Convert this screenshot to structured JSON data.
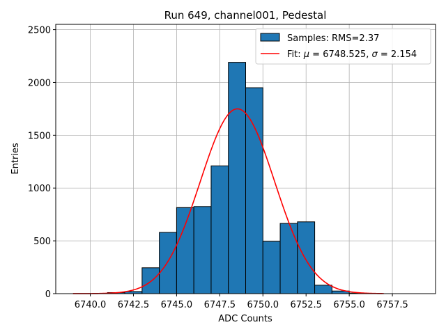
{
  "chart_data": {
    "type": "bar",
    "title": "Run 649, channel001, Pedestal",
    "xlabel": "ADC Counts",
    "ylabel": "Entries",
    "xlim": [
      6738,
      6760
    ],
    "ylim": [
      0,
      2550
    ],
    "x_ticks": [
      6740.0,
      6742.5,
      6745.0,
      6747.5,
      6750.0,
      6752.5,
      6755.0,
      6757.5
    ],
    "x_tick_labels": [
      "6740.0",
      "6742.5",
      "6745.0",
      "6747.5",
      "6750.0",
      "6752.5",
      "6755.0",
      "6757.5"
    ],
    "y_ticks": [
      0,
      500,
      1000,
      1500,
      2000,
      2500
    ],
    "y_tick_labels": [
      "0",
      "500",
      "1000",
      "1500",
      "2000",
      "2500"
    ],
    "grid": true,
    "legend_position": "top-right",
    "histogram": {
      "name": "Samples: RMS=2.37",
      "color": "#1f77b4",
      "edge_color": "#000000",
      "bins": [
        {
          "x0": 6741.0,
          "x1": 6742.0,
          "count": 10
        },
        {
          "x0": 6742.0,
          "x1": 6743.0,
          "count": 20
        },
        {
          "x0": 6743.0,
          "x1": 6744.0,
          "count": 245
        },
        {
          "x0": 6744.0,
          "x1": 6745.0,
          "count": 580
        },
        {
          "x0": 6745.0,
          "x1": 6746.0,
          "count": 815
        },
        {
          "x0": 6746.0,
          "x1": 6747.0,
          "count": 825
        },
        {
          "x0": 6747.0,
          "x1": 6748.0,
          "count": 1210
        },
        {
          "x0": 6748.0,
          "x1": 6749.0,
          "count": 2190
        },
        {
          "x0": 6749.0,
          "x1": 6750.0,
          "count": 1950
        },
        {
          "x0": 6750.0,
          "x1": 6751.0,
          "count": 495
        },
        {
          "x0": 6751.0,
          "x1": 6752.0,
          "count": 665
        },
        {
          "x0": 6752.0,
          "x1": 6753.0,
          "count": 680
        },
        {
          "x0": 6753.0,
          "x1": 6754.0,
          "count": 80
        },
        {
          "x0": 6754.0,
          "x1": 6755.0,
          "count": 25
        },
        {
          "x0": 6755.0,
          "x1": 6756.0,
          "count": 5
        }
      ]
    },
    "fit": {
      "name": "Fit: μ = 6748.525, σ = 2.154",
      "label_prefix": "Fit: ",
      "mu_symbol": "μ",
      "mu_text": " = 6748.525, ",
      "sigma_symbol": "σ",
      "sigma_text": " = 2.154",
      "color": "#ff0000",
      "mu": 6748.525,
      "sigma": 2.154,
      "amplitude": 1750,
      "x_range": [
        6739,
        6757
      ]
    }
  }
}
